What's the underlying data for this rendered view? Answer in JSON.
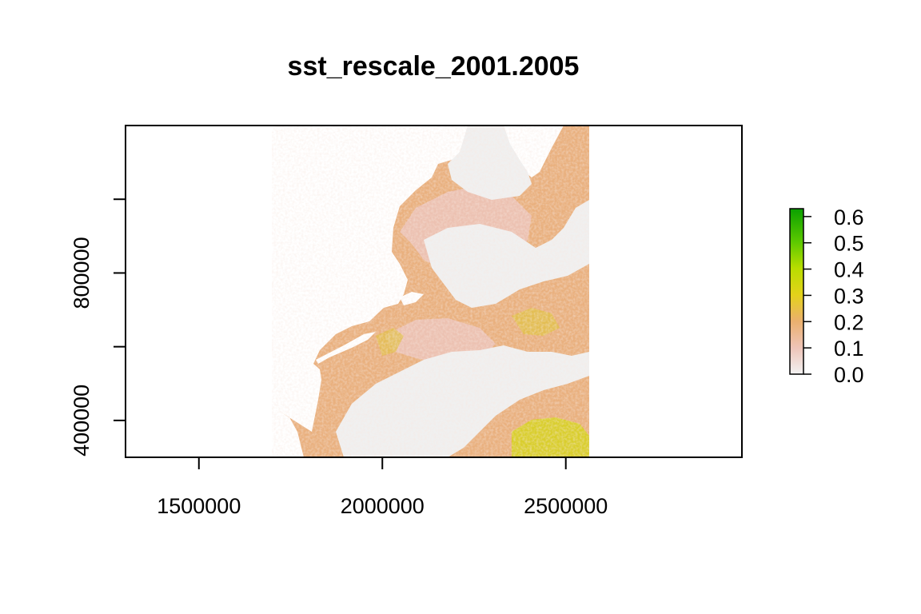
{
  "chart_data": {
    "type": "heatmap",
    "title": "sst_rescale_2001.2005",
    "xlabel": "",
    "ylabel": "",
    "xlim": [
      1300000,
      2980000
    ],
    "ylim": [
      300000,
      1200000
    ],
    "x_ticks": [
      1500000,
      2000000,
      2500000
    ],
    "x_tick_labels": [
      "1500000",
      "2000000",
      "2500000"
    ],
    "y_ticks": [
      400000,
      600000,
      800000,
      1000000
    ],
    "y_tick_labels": [
      "400000",
      "",
      "800000",
      ""
    ],
    "raster_extent_x": [
      1700000,
      2565000
    ],
    "legend": {
      "position": "right",
      "range": [
        0.0,
        0.63
      ],
      "ticks": [
        "0.0",
        "0.1",
        "0.2",
        "0.3",
        "0.4",
        "0.5",
        "0.6"
      ],
      "tick_values": [
        0.0,
        0.1,
        0.2,
        0.3,
        0.4,
        0.5,
        0.6
      ],
      "colors": [
        "#f2f2f2",
        "#eec4b8",
        "#ebb06e",
        "#e3d21a",
        "#b9dd00",
        "#5cc900",
        "#0aa000"
      ]
    },
    "colors": {
      "nodata_fill": "#ffffff",
      "low_value": "#f0f0f0",
      "mid_value": "#e8b07c",
      "high_value": "#d7df20"
    }
  }
}
